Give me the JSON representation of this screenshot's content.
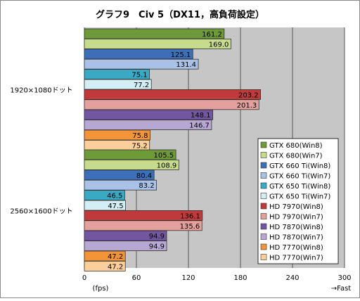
{
  "chart_data": {
    "type": "bar",
    "orientation": "horizontal",
    "title": "グラフ9　Civ 5（DX11，高負荷設定）",
    "xlabel": "(fps)",
    "axis_note": "→Fast",
    "xlim": [
      0,
      300
    ],
    "xticks": [
      0,
      60,
      120,
      180,
      240,
      300
    ],
    "grid": true,
    "legend_position": "right",
    "categories": [
      "1920×1080ドット",
      "2560×1600ドット"
    ],
    "series": [
      {
        "name": "GTX 680(Win8)",
        "color": "#6e9a3a",
        "values": [
          161.2,
          105.5
        ]
      },
      {
        "name": "GTX 680(Win7)",
        "color": "#c6dc8c",
        "values": [
          169.0,
          108.9
        ]
      },
      {
        "name": "GTX 660 Ti(Win8)",
        "color": "#3c6fb8",
        "values": [
          125.1,
          80.4
        ]
      },
      {
        "name": "GTX 660 Ti(Win7)",
        "color": "#a9c1e6",
        "values": [
          131.4,
          83.2
        ]
      },
      {
        "name": "GTX 650 Ti(Win8)",
        "color": "#3aa9c3",
        "values": [
          75.1,
          46.5
        ]
      },
      {
        "name": "GTX 650 Ti(Win7)",
        "color": "#d3eef5",
        "values": [
          77.2,
          47.5
        ]
      },
      {
        "name": "HD 7970(Win8)",
        "color": "#c0393b",
        "values": [
          203.2,
          136.1
        ]
      },
      {
        "name": "HD 7970(Win7)",
        "color": "#e3a09c",
        "values": [
          201.3,
          135.6
        ]
      },
      {
        "name": "HD 7870(Win8)",
        "color": "#7356a0",
        "values": [
          148.1,
          94.9
        ]
      },
      {
        "name": "HD 7870(Win7)",
        "color": "#b7a8d3",
        "values": [
          146.7,
          94.9
        ]
      },
      {
        "name": "HD 7770(Win8)",
        "color": "#f29538",
        "values": [
          75.8,
          47.2
        ]
      },
      {
        "name": "HD 7770(Win7)",
        "color": "#fbcf9b",
        "values": [
          75.2,
          47.2
        ]
      }
    ],
    "colors": {
      "plot_background": "#c6c6c6",
      "gridline": "#555555",
      "bar_outline": "#333333"
    }
  }
}
